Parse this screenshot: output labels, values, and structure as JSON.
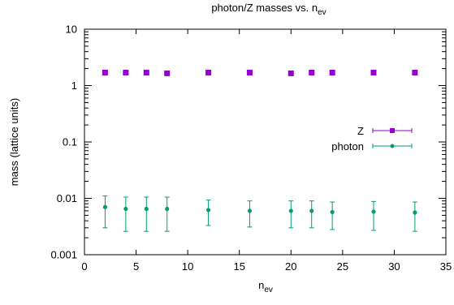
{
  "chart_data": {
    "type": "scatter",
    "title": "photon/Z masses vs. n",
    "title_sub": "ev",
    "xlabel": "n",
    "xlabel_sub": "ev",
    "ylabel": "mass (lattice units)",
    "xlim": [
      0,
      35
    ],
    "ylim": [
      0.001,
      10
    ],
    "yscale": "log",
    "grid": false,
    "legend_position": "right",
    "x_ticks": [
      {
        "value": 0,
        "label": "0"
      },
      {
        "value": 5,
        "label": "5"
      },
      {
        "value": 10,
        "label": "10"
      },
      {
        "value": 15,
        "label": "15"
      },
      {
        "value": 20,
        "label": "20"
      },
      {
        "value": 25,
        "label": "25"
      },
      {
        "value": 30,
        "label": "30"
      },
      {
        "value": 35,
        "label": "35"
      }
    ],
    "y_ticks": [
      {
        "value": 0.001,
        "label": "0.001"
      },
      {
        "value": 0.01,
        "label": "0.01"
      },
      {
        "value": 0.1,
        "label": "0.1"
      },
      {
        "value": 1,
        "label": "1"
      },
      {
        "value": 10,
        "label": "10"
      }
    ],
    "series": [
      {
        "name": "Z",
        "color": "#9400d3",
        "marker": "square",
        "points": [
          {
            "x": 2,
            "y": 1.7
          },
          {
            "x": 4,
            "y": 1.7
          },
          {
            "x": 6,
            "y": 1.7
          },
          {
            "x": 8,
            "y": 1.65
          },
          {
            "x": 12,
            "y": 1.7
          },
          {
            "x": 16,
            "y": 1.7
          },
          {
            "x": 20,
            "y": 1.65
          },
          {
            "x": 22,
            "y": 1.7
          },
          {
            "x": 24,
            "y": 1.7
          },
          {
            "x": 28,
            "y": 1.7
          },
          {
            "x": 32,
            "y": 1.7
          }
        ]
      },
      {
        "name": "photon",
        "color": "#009e73",
        "marker": "circle",
        "points": [
          {
            "x": 2,
            "y": 0.007,
            "lo": 0.003,
            "hi": 0.011
          },
          {
            "x": 4,
            "y": 0.0065,
            "lo": 0.0026,
            "hi": 0.0105
          },
          {
            "x": 6,
            "y": 0.0065,
            "lo": 0.0026,
            "hi": 0.0105
          },
          {
            "x": 8,
            "y": 0.0065,
            "lo": 0.0026,
            "hi": 0.0105
          },
          {
            "x": 12,
            "y": 0.0062,
            "lo": 0.0033,
            "hi": 0.0093
          },
          {
            "x": 16,
            "y": 0.006,
            "lo": 0.0031,
            "hi": 0.009
          },
          {
            "x": 20,
            "y": 0.006,
            "lo": 0.003,
            "hi": 0.009
          },
          {
            "x": 22,
            "y": 0.006,
            "lo": 0.003,
            "hi": 0.009
          },
          {
            "x": 24,
            "y": 0.0057,
            "lo": 0.0028,
            "hi": 0.0086
          },
          {
            "x": 28,
            "y": 0.0058,
            "lo": 0.0027,
            "hi": 0.0088
          },
          {
            "x": 32,
            "y": 0.0056,
            "lo": 0.0026,
            "hi": 0.0086
          }
        ]
      }
    ]
  }
}
